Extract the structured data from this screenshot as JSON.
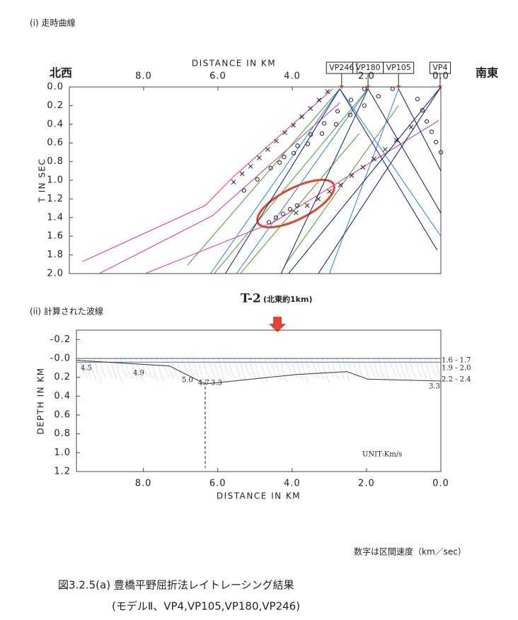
{
  "section1": "(i) 走時曲線",
  "section2": "(ii) 計算された波線",
  "note": "数字は区間速度（km／sec）",
  "caption": "図3.2.5(a)  豊橋平野屈折法レイトレーシング結果",
  "caption2": "(モデルⅡ、VP4,VP105,VP180,VP246)",
  "chart_data": [
    {
      "type": "line",
      "left_label": "北西",
      "right_label": "南東",
      "xlabel": "DISTANCE IN KM",
      "ylabel": "T IN SEC",
      "invert_y": true,
      "xlim": [
        10,
        0
      ],
      "ylim": [
        0,
        2
      ],
      "xticks": [
        {
          "value": 8,
          "label": "8.0"
        },
        {
          "value": 6,
          "label": "6.0"
        },
        {
          "value": 4,
          "label": "4.0"
        },
        {
          "value": 2,
          "label": "2.0"
        },
        {
          "value": 0,
          "label": "0.0"
        }
      ],
      "yticks": [
        {
          "value": 0,
          "label": "0.0"
        },
        {
          "value": 0.2,
          "label": "0.2"
        },
        {
          "value": 0.4,
          "label": "0.4"
        },
        {
          "value": 0.6,
          "label": "0.6"
        },
        {
          "value": 0.8,
          "label": "0.8"
        },
        {
          "value": 1,
          "label": "1.0"
        },
        {
          "value": 1.2,
          "label": "1.2"
        },
        {
          "value": 1.4,
          "label": "1.4"
        },
        {
          "value": 1.6,
          "label": "1.6"
        },
        {
          "value": 1.8,
          "label": "1.8"
        },
        {
          "value": 2,
          "label": "2.0"
        }
      ],
      "stations": [
        {
          "label": "VP246",
          "x": 2.67
        },
        {
          "label": "VP180",
          "x": 1.96
        },
        {
          "label": "VP105",
          "x": 1.14
        },
        {
          "label": "VP4",
          "x": 0.02
        }
      ],
      "series": [
        {
          "color": "#e040a0",
          "x": [
            9.64,
            6.34,
            5.58,
            2.91
          ],
          "values": [
            1.87,
            1.27,
            0.96,
            0.02
          ]
        },
        {
          "color": "#e040a0",
          "x": [
            9.2,
            6.15,
            2.72
          ],
          "values": [
            2.0,
            1.38,
            0.17
          ]
        },
        {
          "color": "#e040a0",
          "x": [
            7.96,
            4.5,
            0.06
          ],
          "values": [
            2.0,
            1.45,
            0.36
          ]
        },
        {
          "color": "#5aa040",
          "x": [
            6.82,
            2.72
          ],
          "values": [
            1.91,
            0.02
          ]
        },
        {
          "color": "#5aa040",
          "x": [
            6.1,
            1.96
          ],
          "values": [
            2.0,
            0.02
          ]
        },
        {
          "color": "#5aa040",
          "x": [
            4.2,
            1.14
          ],
          "values": [
            1.91,
            0.2
          ]
        },
        {
          "color": "#5aa040",
          "x": [
            5.4,
            2.2
          ],
          "values": [
            2.0,
            0.5
          ]
        },
        {
          "color": "#3a8fd0",
          "x": [
            6.2,
            2.72
          ],
          "values": [
            2.0,
            0.02
          ]
        },
        {
          "color": "#3a8fd0",
          "x": [
            5.5,
            1.96
          ],
          "values": [
            2.0,
            0.02
          ]
        },
        {
          "color": "#3a8fd0",
          "x": [
            3.0,
            1.14
          ],
          "values": [
            2.0,
            0.02
          ]
        },
        {
          "color": "#3a8fd0",
          "x": [
            2.72,
            0
          ],
          "values": [
            0.02,
            1.6
          ]
        },
        {
          "color": "#1a2a7a",
          "x": [
            5.8,
            2.72
          ],
          "values": [
            2.0,
            0.02
          ]
        },
        {
          "color": "#1a2a7a",
          "x": [
            4.3,
            1.96
          ],
          "values": [
            2.0,
            0.02
          ]
        },
        {
          "color": "#1a2a7a",
          "x": [
            3.3,
            0
          ],
          "values": [
            2.0,
            0
          ]
        },
        {
          "color": "#1a2a7a",
          "x": [
            4.1,
            0
          ],
          "values": [
            2.0,
            0
          ]
        },
        {
          "color": "#1a2a7a",
          "x": [
            2.72,
            0.1
          ],
          "values": [
            0.02,
            1.75
          ]
        },
        {
          "color": "#1a2a7a",
          "x": [
            1.96,
            0
          ],
          "values": [
            0.02,
            1.35
          ]
        },
        {
          "color": "#1a2a7a",
          "x": [
            1.14,
            0
          ],
          "values": [
            0.02,
            0.9
          ]
        },
        {
          "color": "#222",
          "marker": "x",
          "x": [
            5.58,
            5.35,
            5.12,
            4.89,
            4.66,
            4.43,
            4.2,
            3.97,
            3.74,
            3.51,
            3.28,
            3.05
          ],
          "values": [
            1.02,
            0.93,
            0.85,
            0.76,
            0.67,
            0.58,
            0.49,
            0.41,
            0.32,
            0.23,
            0.14,
            0.05
          ]
        },
        {
          "color": "#222",
          "marker": "o",
          "x": [
            5.3,
            4.94,
            4.58,
            4.22,
            3.86,
            3.5,
            3.14,
            2.78,
            2.42,
            2.06
          ],
          "values": [
            1.11,
            0.99,
            0.87,
            0.75,
            0.63,
            0.51,
            0.39,
            0.26,
            0.14,
            0.02
          ]
        },
        {
          "color": "#222",
          "marker": "o",
          "x": [
            4.63,
            4.44,
            4.25,
            4.06,
            3.87
          ],
          "values": [
            1.45,
            1.4,
            1.36,
            1.31,
            1.27
          ]
        },
        {
          "color": "#222",
          "marker": "x",
          "x": [
            3.9,
            3.6,
            3.3,
            3.0,
            2.7,
            2.4,
            2.1,
            1.8,
            1.5,
            1.2,
            0.8
          ],
          "values": [
            1.35,
            1.27,
            1.2,
            1.12,
            1.05,
            0.95,
            0.86,
            0.77,
            0.67,
            0.57,
            0.43
          ]
        },
        {
          "color": "#222",
          "marker": "o",
          "x": [
            4.34,
            3.96,
            3.58,
            3.2,
            2.82,
            2.44,
            2.06,
            1.68,
            1.3
          ],
          "values": [
            0.81,
            0.71,
            0.61,
            0.5,
            0.4,
            0.3,
            0.2,
            0.1,
            0.02
          ]
        },
        {
          "color": "#222",
          "marker": "o",
          "x": [
            0.63,
            0.5,
            0.38,
            0.25,
            0.13,
            0.0
          ],
          "values": [
            0.13,
            0.25,
            0.37,
            0.48,
            0.59,
            0.7
          ]
        }
      ]
    },
    {
      "type": "line",
      "title": "T-2",
      "subtitle": "(北東約1km)",
      "xlabel": "DISTANCE IN KM",
      "ylabel": "DEPTH IN KM",
      "invert_y": true,
      "xlim": [
        9.8,
        0
      ],
      "ylim": [
        -0.3,
        1.2
      ],
      "xticks": [
        {
          "value": 8,
          "label": "8.0"
        },
        {
          "value": 6,
          "label": "6.0"
        },
        {
          "value": 4,
          "label": "4.0"
        },
        {
          "value": 2,
          "label": "2.0"
        },
        {
          "value": 0,
          "label": "0.0"
        }
      ],
      "yticks": [
        {
          "value": -0.2,
          "label": "-0.2"
        },
        {
          "value": 0,
          "label": "-0.0"
        },
        {
          "value": 0.2,
          "label": "0.2"
        },
        {
          "value": 0.4,
          "label": "0.4"
        },
        {
          "value": 0.6,
          "label": "0.6"
        },
        {
          "value": 0.8,
          "label": "0.8"
        },
        {
          "value": 1,
          "label": "1.0"
        },
        {
          "value": 1.2,
          "label": "1.2"
        }
      ],
      "series": [
        {
          "color": "#555",
          "x": [
            9.8,
            0
          ],
          "values": [
            0,
            0
          ]
        },
        {
          "color": "#3a8fd0",
          "x": [
            9.8,
            0
          ],
          "values": [
            0.04,
            0.04
          ]
        },
        {
          "color": "#444",
          "x": [
            9.8,
            7.3,
            6.34,
            3.87,
            2.53,
            1.96,
            0
          ],
          "values": [
            0.02,
            0.08,
            0.27,
            0.17,
            0.14,
            0.22,
            0.24
          ]
        }
      ],
      "velocity_labels": [
        "4.5",
        "4.9",
        "5.0",
        "4.7",
        "3.3",
        "3.3"
      ],
      "layer_labels": [
        "1.6 - 1.7",
        "1.9 - 2.0",
        "2.2 - 2.4"
      ],
      "unit": "UNIT:Km/s"
    }
  ]
}
